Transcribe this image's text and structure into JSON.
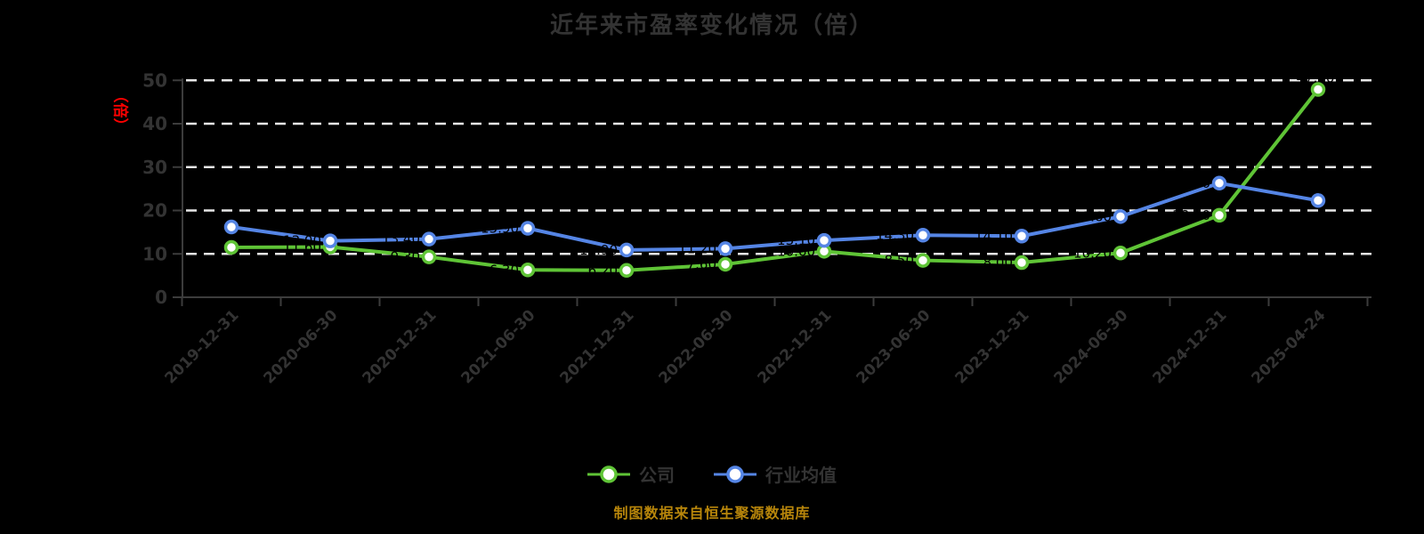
{
  "title": "近年来市盈率变化情况（倍）",
  "y_axis_unit_label": "（倍）",
  "source_note": "制图数据来自恒生聚源数据库",
  "legend": [
    {
      "label": "公司"
    },
    {
      "label": "行业均值"
    }
  ],
  "colors": {
    "background": "#000000",
    "title_text": "#333333",
    "axis_line": "#3C3C3C",
    "tick_text": "#333333",
    "grid_line": "#E8E8E8",
    "unit_label": "#FF0000",
    "source_text": "#B8860B",
    "data_label": "#000000",
    "marker_fill": "#FFFFFF",
    "company": "#5FC436",
    "industry": "#5585E5"
  },
  "chart_data": {
    "type": "line",
    "title": "近年来市盈率变化情况（倍）",
    "categories": [
      "2019-12-31",
      "2020-06-30",
      "2020-12-31",
      "2021-06-30",
      "2021-12-31",
      "2022-06-30",
      "2022-12-31",
      "2023-06-30",
      "2023-12-31",
      "2024-06-30",
      "2024-12-31",
      "2025-04-24"
    ],
    "series": [
      {
        "name": "公司",
        "color": "#5FC436",
        "values": [
          11.5,
          11.6,
          9.3,
          6.3,
          6.2,
          7.6,
          10.6,
          8.5,
          8.0,
          10.2,
          18.9,
          47.9
        ]
      },
      {
        "name": "行业均值",
        "color": "#5585E5",
        "values": [
          16.2,
          13.0,
          13.4,
          15.9,
          10.9,
          11.2,
          13.1,
          14.3,
          14.1,
          18.6,
          26.3,
          22.3
        ]
      }
    ],
    "ylabel": "（倍）",
    "ylim": [
      0,
      50
    ],
    "y_ticks": [
      0,
      10,
      20,
      30,
      40,
      50
    ],
    "grid": "horizontal-dashed-white",
    "x_tick_label_rotation": -45,
    "legend_position": "bottom",
    "data_labels": "black, 2 decimals, mostly invisible on black background"
  }
}
